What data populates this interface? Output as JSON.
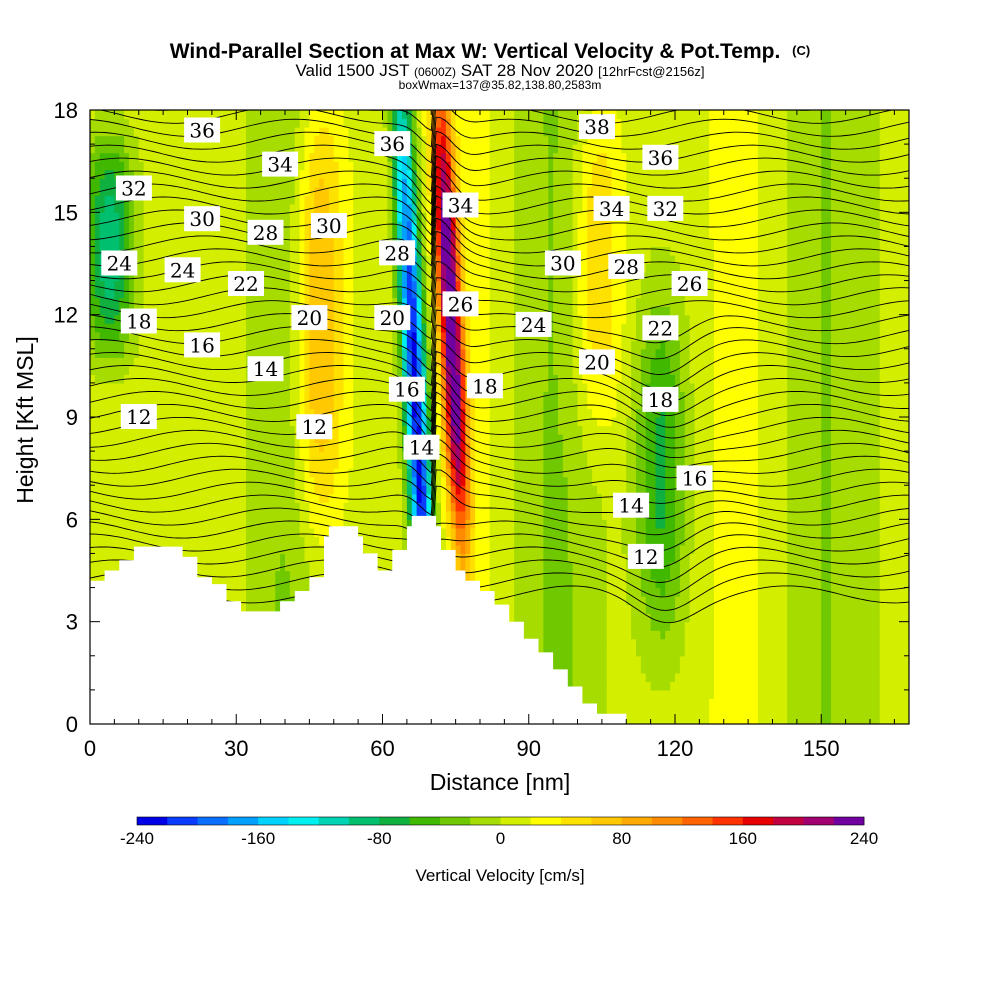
{
  "chart_data": {
    "type": "heatmap",
    "title": "Wind-Parallel Section at Max W: Vertical Velocity & Pot.Temp.",
    "title_suffix": "(C)",
    "subtitle": {
      "part1": "Valid 1500 JST",
      "part2": "(0600Z)",
      "part3": "SAT 28 Nov 2020",
      "part4": "[12hrFcst@2156z]"
    },
    "subtitle2": "boxWmax=137@35.82,138.80,2583m",
    "xlabel": "Distance [nm]",
    "ylabel": "Height [Kft MSL]",
    "xlim": [
      0,
      168
    ],
    "ylim": [
      0,
      18
    ],
    "x_ticks": [
      "0",
      "30",
      "60",
      "90",
      "120",
      "150"
    ],
    "y_ticks": [
      "0",
      "3",
      "6",
      "9",
      "12",
      "15",
      "18"
    ],
    "colorbar": {
      "label": "Vertical Velocity [cm/s]",
      "range": [
        -240,
        240
      ],
      "tick_values": [
        -240,
        -160,
        -80,
        0,
        80,
        160,
        240
      ],
      "tick_labels": [
        "-240",
        "-160",
        "-80",
        "0",
        "80",
        "160",
        "240"
      ],
      "colors": [
        "#0000e6",
        "#0a3cff",
        "#0a6eff",
        "#00a0ff",
        "#00d2ff",
        "#00f0f0",
        "#00d2b4",
        "#00c070",
        "#10b040",
        "#40b800",
        "#70c800",
        "#a6dc00",
        "#d4ee00",
        "#ffff00",
        "#ffe100",
        "#ffc800",
        "#ffaa00",
        "#ff8c00",
        "#ff6400",
        "#ff3200",
        "#e60000",
        "#c00040",
        "#a00070",
        "#7000a0"
      ]
    },
    "velocity_features": [
      {
        "kind": "downdraft",
        "x": 67,
        "y_range": [
          0,
          18
        ],
        "peak_cm_s": -240
      },
      {
        "kind": "updraft",
        "x": 75,
        "y_range": [
          6,
          18
        ],
        "peak_cm_s": 240
      },
      {
        "kind": "weak_downdraft",
        "x": 4,
        "y_range": [
          11,
          17
        ],
        "peak_cm_s": -110
      },
      {
        "kind": "weak_updraft",
        "x": 47,
        "y_range": [
          6,
          18
        ],
        "peak_cm_s": 90
      },
      {
        "kind": "weak_updraft",
        "x": 104,
        "y_range": [
          9,
          18
        ],
        "peak_cm_s": 60
      },
      {
        "kind": "weak_downdraft",
        "x": 117,
        "y_range": [
          3,
          12
        ],
        "peak_cm_s": -70
      }
    ],
    "contour_labels": [
      {
        "text": "36",
        "x": 23,
        "y": 17.4
      },
      {
        "text": "32",
        "x": 9,
        "y": 15.7
      },
      {
        "text": "30",
        "x": 23,
        "y": 14.8
      },
      {
        "text": "34",
        "x": 39,
        "y": 16.4
      },
      {
        "text": "28",
        "x": 36,
        "y": 14.4
      },
      {
        "text": "30",
        "x": 49,
        "y": 14.6
      },
      {
        "text": "24",
        "x": 6,
        "y": 13.5
      },
      {
        "text": "24",
        "x": 19,
        "y": 13.3
      },
      {
        "text": "22",
        "x": 32,
        "y": 12.9
      },
      {
        "text": "18",
        "x": 10,
        "y": 11.8
      },
      {
        "text": "20",
        "x": 45,
        "y": 11.9
      },
      {
        "text": "16",
        "x": 23,
        "y": 11.1
      },
      {
        "text": "14",
        "x": 36,
        "y": 10.4
      },
      {
        "text": "12",
        "x": 10,
        "y": 9.0
      },
      {
        "text": "12",
        "x": 46,
        "y": 8.7
      },
      {
        "text": "36",
        "x": 62,
        "y": 17.0
      },
      {
        "text": "28",
        "x": 63,
        "y": 13.8
      },
      {
        "text": "20",
        "x": 62,
        "y": 11.9
      },
      {
        "text": "16",
        "x": 65,
        "y": 9.8
      },
      {
        "text": "14",
        "x": 68,
        "y": 8.1
      },
      {
        "text": "34",
        "x": 76,
        "y": 15.2
      },
      {
        "text": "26",
        "x": 76,
        "y": 12.3
      },
      {
        "text": "18",
        "x": 81,
        "y": 9.9
      },
      {
        "text": "24",
        "x": 91,
        "y": 11.7
      },
      {
        "text": "30",
        "x": 97,
        "y": 13.5
      },
      {
        "text": "38",
        "x": 104,
        "y": 17.5
      },
      {
        "text": "34",
        "x": 107,
        "y": 15.1
      },
      {
        "text": "36",
        "x": 117,
        "y": 16.6
      },
      {
        "text": "32",
        "x": 118,
        "y": 15.1
      },
      {
        "text": "28",
        "x": 110,
        "y": 13.4
      },
      {
        "text": "26",
        "x": 123,
        "y": 12.9
      },
      {
        "text": "22",
        "x": 117,
        "y": 11.6
      },
      {
        "text": "20",
        "x": 104,
        "y": 10.6
      },
      {
        "text": "18",
        "x": 117,
        "y": 9.5
      },
      {
        "text": "16",
        "x": 124,
        "y": 7.2
      },
      {
        "text": "14",
        "x": 111,
        "y": 6.4
      },
      {
        "text": "12",
        "x": 114,
        "y": 4.9
      }
    ],
    "terrain": [
      [
        0,
        4.2
      ],
      [
        3,
        4.2
      ],
      [
        3,
        4.5
      ],
      [
        6,
        4.5
      ],
      [
        6,
        4.8
      ],
      [
        9,
        4.8
      ],
      [
        9,
        5.2
      ],
      [
        19,
        5.2
      ],
      [
        19,
        4.9
      ],
      [
        22,
        4.9
      ],
      [
        22,
        4.3
      ],
      [
        25,
        4.3
      ],
      [
        25,
        4.1
      ],
      [
        28,
        4.1
      ],
      [
        28,
        3.6
      ],
      [
        31,
        3.6
      ],
      [
        31,
        3.3
      ],
      [
        39,
        3.3
      ],
      [
        39,
        3.6
      ],
      [
        42,
        3.6
      ],
      [
        42,
        3.9
      ],
      [
        45,
        3.9
      ],
      [
        45,
        4.3
      ],
      [
        48,
        4.3
      ],
      [
        48,
        5.5
      ],
      [
        49,
        5.5
      ],
      [
        49,
        5.8
      ],
      [
        55,
        5.8
      ],
      [
        55,
        5.5
      ],
      [
        56,
        5.5
      ],
      [
        56,
        5.0
      ],
      [
        59,
        5.0
      ],
      [
        59,
        4.5
      ],
      [
        62,
        4.5
      ],
      [
        62,
        5.1
      ],
      [
        65,
        5.1
      ],
      [
        65,
        5.8
      ],
      [
        66,
        5.8
      ],
      [
        66,
        6.1
      ],
      [
        71,
        6.1
      ],
      [
        71,
        5.8
      ],
      [
        72,
        5.8
      ],
      [
        72,
        5.1
      ],
      [
        75,
        5.1
      ],
      [
        75,
        4.5
      ],
      [
        77,
        4.5
      ],
      [
        77,
        4.2
      ],
      [
        80,
        4.2
      ],
      [
        80,
        3.9
      ],
      [
        83,
        3.9
      ],
      [
        83,
        3.5
      ],
      [
        86,
        3.5
      ],
      [
        86,
        3.0
      ],
      [
        89,
        3.0
      ],
      [
        89,
        2.5
      ],
      [
        92,
        2.5
      ],
      [
        92,
        2.1
      ],
      [
        95,
        2.1
      ],
      [
        95,
        1.6
      ],
      [
        98,
        1.6
      ],
      [
        98,
        1.1
      ],
      [
        101,
        1.1
      ],
      [
        101,
        0.6
      ],
      [
        104,
        0.6
      ],
      [
        104,
        0.3
      ],
      [
        110,
        0.3
      ],
      [
        110,
        0
      ],
      [
        168,
        0
      ]
    ]
  }
}
